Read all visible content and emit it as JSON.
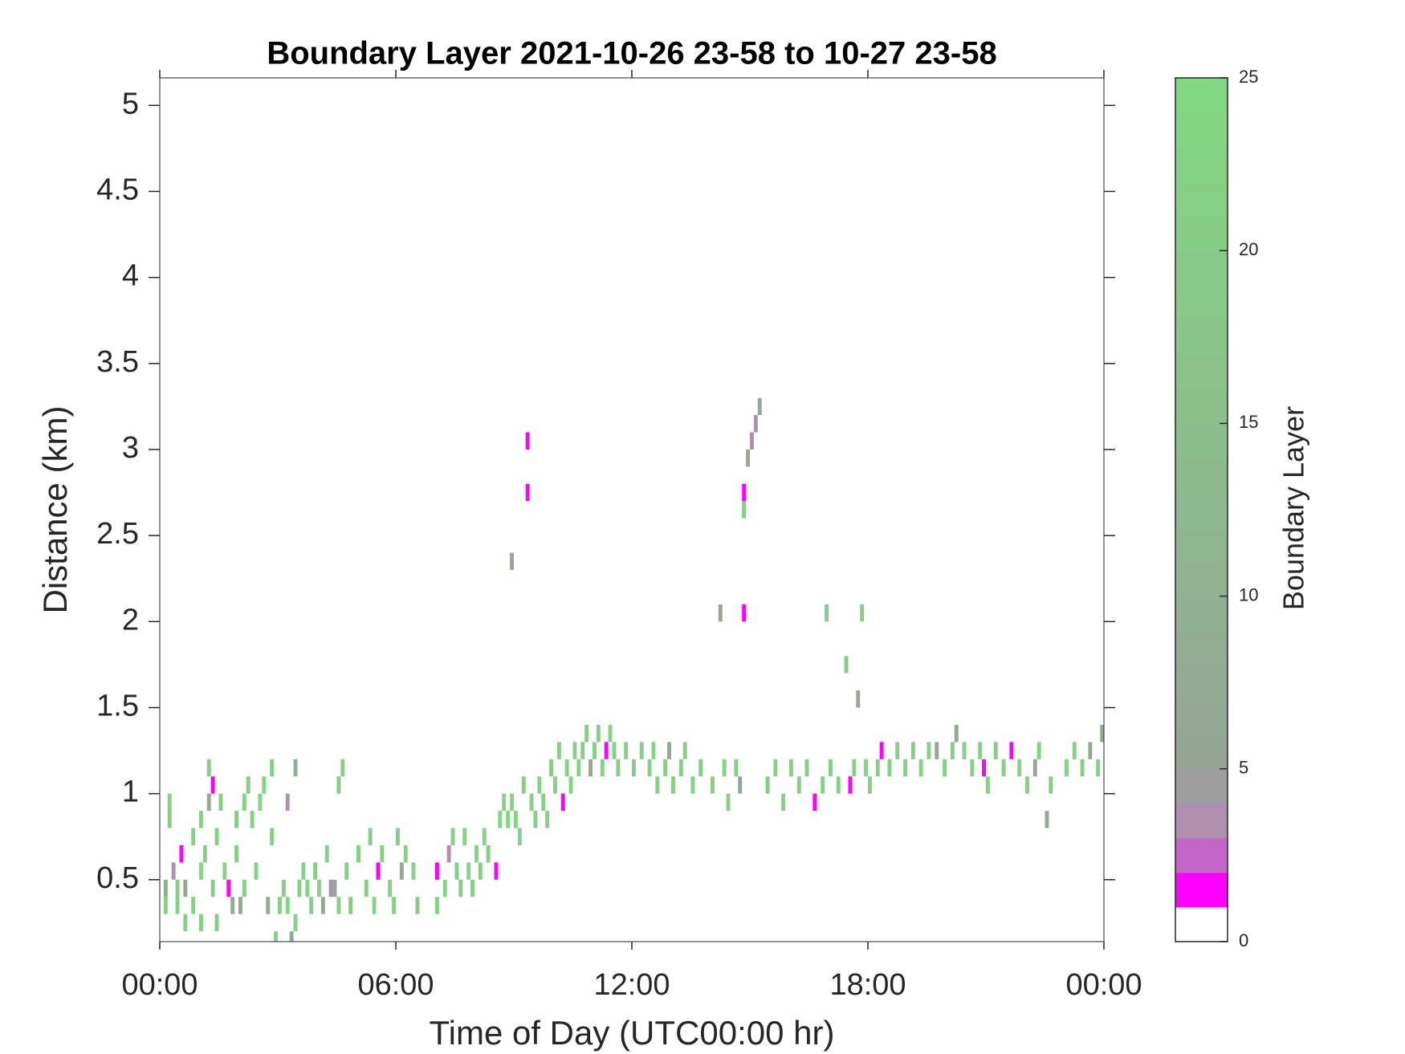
{
  "chart_data": {
    "type": "heatmap",
    "title": "Boundary Layer 2021-10-26 23-58 to 10-27 23-58",
    "x_label": "Time of Day (UTC00:00 hr)",
    "y_label": "Distance (km)",
    "xlim": [
      0,
      24
    ],
    "xticks": [
      {
        "value": 0,
        "label": "00:00"
      },
      {
        "value": 6,
        "label": "06:00"
      },
      {
        "value": 12,
        "label": "12:00"
      },
      {
        "value": 18,
        "label": "18:00"
      },
      {
        "value": 24,
        "label": "00:00"
      }
    ],
    "ylim": [
      0.14,
      5.16
    ],
    "yticks": [
      0.5,
      1,
      1.5,
      2,
      2.5,
      3,
      3.5,
      4,
      4.5,
      5
    ],
    "colorbar_label": "Boundary Layer",
    "clim": [
      0,
      25
    ],
    "cticks": [
      0,
      5,
      10,
      15,
      20,
      25
    ],
    "colormap": [
      "#ffffff",
      "#ff00ff",
      "#c466c8",
      "#ae8fae",
      "#9e9e9e",
      "#95a595",
      "#94a894",
      "#93aa93",
      "#92ad92",
      "#91b091",
      "#90b290",
      "#8fb58f",
      "#8eb88e",
      "#8dba8d",
      "#8cbd8c",
      "#8bc08b",
      "#8ac28a",
      "#89c589",
      "#88c888",
      "#87ca87",
      "#86cd86",
      "#85d085",
      "#84d284",
      "#83d583",
      "#82d782"
    ],
    "cells": [
      [
        0.1,
        0.3,
        22
      ],
      [
        0.1,
        0.4,
        8
      ],
      [
        0.2,
        0.8,
        20
      ],
      [
        0.2,
        0.9,
        21
      ],
      [
        0.3,
        0.5,
        3
      ],
      [
        0.4,
        0.3,
        22
      ],
      [
        0.4,
        0.4,
        21
      ],
      [
        0.5,
        0.6,
        1
      ],
      [
        0.6,
        0.2,
        20
      ],
      [
        0.6,
        0.4,
        6
      ],
      [
        0.8,
        0.3,
        22
      ],
      [
        0.8,
        0.7,
        21
      ],
      [
        1.0,
        0.2,
        22
      ],
      [
        1.0,
        0.5,
        23
      ],
      [
        1.0,
        0.8,
        21
      ],
      [
        1.1,
        0.6,
        20
      ],
      [
        1.2,
        1.1,
        20
      ],
      [
        1.2,
        0.9,
        8
      ],
      [
        1.3,
        1.0,
        1
      ],
      [
        1.3,
        0.4,
        21
      ],
      [
        1.4,
        0.7,
        22
      ],
      [
        1.4,
        0.2,
        20
      ],
      [
        1.5,
        0.9,
        21
      ],
      [
        1.6,
        0.5,
        23
      ],
      [
        1.7,
        0.4,
        1
      ],
      [
        1.8,
        0.3,
        7
      ],
      [
        1.9,
        0.6,
        22
      ],
      [
        1.9,
        0.8,
        20
      ],
      [
        2.0,
        0.3,
        6
      ],
      [
        2.1,
        0.4,
        21
      ],
      [
        2.1,
        0.9,
        22
      ],
      [
        2.2,
        1.0,
        20
      ],
      [
        2.3,
        0.8,
        21
      ],
      [
        2.4,
        0.5,
        22
      ],
      [
        2.5,
        0.9,
        23
      ],
      [
        2.6,
        1.0,
        22
      ],
      [
        2.7,
        0.3,
        7
      ],
      [
        2.8,
        0.7,
        21
      ],
      [
        2.8,
        1.1,
        20
      ],
      [
        2.9,
        0.1,
        22
      ],
      [
        3.0,
        0.3,
        22
      ],
      [
        3.1,
        0.4,
        21
      ],
      [
        3.2,
        0.3,
        23
      ],
      [
        3.2,
        0.9,
        3
      ],
      [
        3.3,
        0.1,
        6
      ],
      [
        3.4,
        1.1,
        8
      ],
      [
        3.4,
        0.2,
        22
      ],
      [
        3.5,
        0.4,
        21
      ],
      [
        3.6,
        0.5,
        22
      ],
      [
        3.7,
        0.4,
        23
      ],
      [
        3.8,
        0.3,
        21
      ],
      [
        3.9,
        0.5,
        20
      ],
      [
        4.0,
        0.4,
        22
      ],
      [
        4.1,
        0.3,
        6
      ],
      [
        4.2,
        0.6,
        21
      ],
      [
        4.3,
        0.4,
        3
      ],
      [
        4.4,
        0.4,
        6
      ],
      [
        4.5,
        0.3,
        22
      ],
      [
        4.5,
        1.0,
        20
      ],
      [
        4.6,
        1.1,
        21
      ],
      [
        4.7,
        0.5,
        22
      ],
      [
        4.8,
        0.3,
        20
      ],
      [
        5.0,
        0.6,
        21
      ],
      [
        5.2,
        0.4,
        22
      ],
      [
        5.3,
        0.7,
        20
      ],
      [
        5.4,
        0.3,
        23
      ],
      [
        5.5,
        0.5,
        1
      ],
      [
        5.6,
        0.6,
        22
      ],
      [
        5.8,
        0.4,
        21
      ],
      [
        5.9,
        0.3,
        22
      ],
      [
        6.0,
        0.7,
        20
      ],
      [
        6.1,
        0.5,
        7
      ],
      [
        6.2,
        0.6,
        21
      ],
      [
        6.4,
        0.5,
        22
      ],
      [
        6.5,
        0.3,
        20
      ],
      [
        7.0,
        0.3,
        21
      ],
      [
        7.0,
        0.5,
        1
      ],
      [
        7.2,
        0.4,
        22
      ],
      [
        7.3,
        0.6,
        3
      ],
      [
        7.4,
        0.7,
        21
      ],
      [
        7.5,
        0.5,
        22
      ],
      [
        7.6,
        0.4,
        20
      ],
      [
        7.7,
        0.7,
        22
      ],
      [
        7.8,
        0.5,
        23
      ],
      [
        7.9,
        0.4,
        21
      ],
      [
        8.0,
        0.6,
        22
      ],
      [
        8.1,
        0.5,
        20
      ],
      [
        8.2,
        0.7,
        22
      ],
      [
        8.3,
        0.6,
        21
      ],
      [
        8.5,
        0.5,
        1
      ],
      [
        8.6,
        0.8,
        22
      ],
      [
        8.7,
        0.9,
        21
      ],
      [
        8.8,
        0.8,
        23
      ],
      [
        8.9,
        0.9,
        22
      ],
      [
        8.9,
        2.3,
        6
      ],
      [
        9.0,
        0.8,
        22
      ],
      [
        9.1,
        0.7,
        21
      ],
      [
        9.2,
        1.0,
        20
      ],
      [
        9.3,
        2.7,
        1
      ],
      [
        9.3,
        3.0,
        1
      ],
      [
        9.4,
        0.9,
        22
      ],
      [
        9.5,
        0.8,
        21
      ],
      [
        9.6,
        1.0,
        23
      ],
      [
        9.7,
        0.9,
        22
      ],
      [
        9.8,
        0.8,
        21
      ],
      [
        9.9,
        1.1,
        20
      ],
      [
        10.0,
        1.0,
        22
      ],
      [
        10.1,
        1.2,
        21
      ],
      [
        10.2,
        0.9,
        1
      ],
      [
        10.3,
        1.1,
        22
      ],
      [
        10.4,
        1.0,
        23
      ],
      [
        10.5,
        1.2,
        22
      ],
      [
        10.6,
        1.1,
        21
      ],
      [
        10.7,
        1.2,
        22
      ],
      [
        10.8,
        1.3,
        20
      ],
      [
        10.9,
        1.1,
        6
      ],
      [
        11.0,
        1.2,
        22
      ],
      [
        11.1,
        1.3,
        21
      ],
      [
        11.2,
        1.1,
        22
      ],
      [
        11.3,
        1.2,
        1
      ],
      [
        11.4,
        1.3,
        23
      ],
      [
        11.5,
        1.2,
        22
      ],
      [
        11.6,
        1.1,
        21
      ],
      [
        11.8,
        1.2,
        22
      ],
      [
        12.0,
        1.1,
        20
      ],
      [
        12.2,
        1.2,
        21
      ],
      [
        12.4,
        1.1,
        22
      ],
      [
        12.5,
        1.2,
        23
      ],
      [
        12.6,
        1.0,
        22
      ],
      [
        12.8,
        1.1,
        21
      ],
      [
        12.9,
        1.2,
        6
      ],
      [
        13.0,
        1.0,
        22
      ],
      [
        13.2,
        1.1,
        20
      ],
      [
        13.3,
        1.2,
        21
      ],
      [
        13.5,
        1.0,
        22
      ],
      [
        13.7,
        1.1,
        20
      ],
      [
        14.0,
        1.0,
        21
      ],
      [
        14.2,
        2.0,
        6
      ],
      [
        14.3,
        1.1,
        22
      ],
      [
        14.4,
        0.9,
        21
      ],
      [
        14.6,
        1.1,
        20
      ],
      [
        14.7,
        1.0,
        6
      ],
      [
        14.8,
        2.6,
        20
      ],
      [
        14.8,
        2.0,
        1
      ],
      [
        14.8,
        2.7,
        1
      ],
      [
        14.9,
        2.9,
        6
      ],
      [
        15.0,
        3.0,
        3
      ],
      [
        15.1,
        3.1,
        3
      ],
      [
        15.2,
        3.2,
        6
      ],
      [
        15.4,
        1.0,
        20
      ],
      [
        15.6,
        1.1,
        22
      ],
      [
        15.8,
        0.9,
        21
      ],
      [
        16.0,
        1.1,
        22
      ],
      [
        16.2,
        1.0,
        21
      ],
      [
        16.4,
        1.1,
        20
      ],
      [
        16.6,
        0.9,
        1
      ],
      [
        16.8,
        1.0,
        22
      ],
      [
        16.9,
        2.0,
        20
      ],
      [
        17.0,
        1.1,
        21
      ],
      [
        17.2,
        1.0,
        22
      ],
      [
        17.4,
        1.7,
        21
      ],
      [
        17.5,
        1.0,
        1
      ],
      [
        17.6,
        1.1,
        22
      ],
      [
        17.7,
        1.5,
        6
      ],
      [
        17.8,
        2.0,
        20
      ],
      [
        17.9,
        1.1,
        22
      ],
      [
        18.0,
        1.0,
        21
      ],
      [
        18.2,
        1.1,
        20
      ],
      [
        18.3,
        1.2,
        1
      ],
      [
        18.5,
        1.1,
        22
      ],
      [
        18.7,
        1.2,
        21
      ],
      [
        18.9,
        1.1,
        22
      ],
      [
        19.1,
        1.2,
        20
      ],
      [
        19.3,
        1.1,
        22
      ],
      [
        19.5,
        1.2,
        21
      ],
      [
        19.7,
        1.2,
        6
      ],
      [
        19.9,
        1.1,
        22
      ],
      [
        20.1,
        1.2,
        20
      ],
      [
        20.2,
        1.3,
        6
      ],
      [
        20.4,
        1.2,
        22
      ],
      [
        20.6,
        1.1,
        21
      ],
      [
        20.8,
        1.2,
        22
      ],
      [
        20.9,
        1.1,
        1
      ],
      [
        21.0,
        1.0,
        22
      ],
      [
        21.2,
        1.2,
        20
      ],
      [
        21.4,
        1.1,
        21
      ],
      [
        21.6,
        1.2,
        1
      ],
      [
        21.8,
        1.1,
        22
      ],
      [
        22.0,
        1.0,
        21
      ],
      [
        22.2,
        1.1,
        6
      ],
      [
        22.3,
        1.2,
        22
      ],
      [
        22.5,
        0.8,
        6
      ],
      [
        22.6,
        1.0,
        21
      ],
      [
        23.0,
        1.1,
        22
      ],
      [
        23.2,
        1.2,
        20
      ],
      [
        23.4,
        1.1,
        21
      ],
      [
        23.6,
        1.2,
        6
      ],
      [
        23.8,
        1.1,
        22
      ],
      [
        23.9,
        1.3,
        7
      ]
    ]
  }
}
